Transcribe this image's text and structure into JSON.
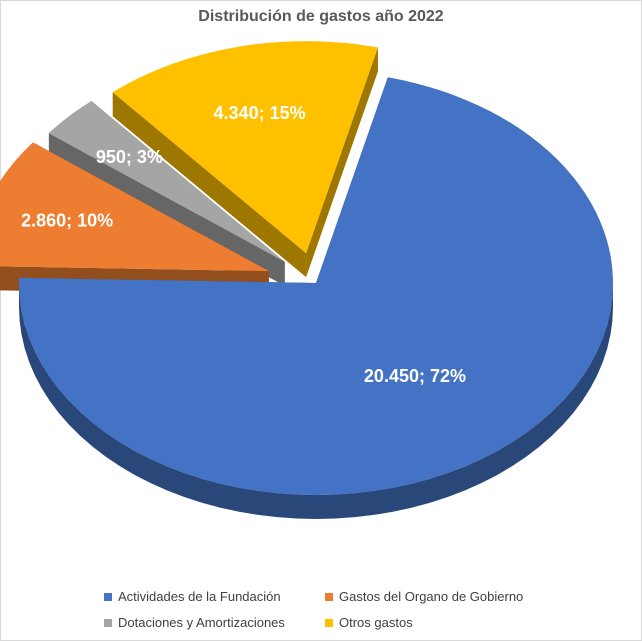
{
  "chart_data": {
    "type": "pie",
    "title": "Distribución de gastos año 2022",
    "categories": [
      "Actividades de la Fundación",
      "Gastos del Organo de Gobierno",
      "Dotaciones y Amortizaciones",
      "Otros gastos"
    ],
    "values": [
      20450,
      2860,
      950,
      4340
    ],
    "percentages": [
      72,
      10,
      3,
      15
    ],
    "data_labels": [
      "20.450; 72%",
      "2.860; 10%",
      "950; 3%",
      "4.340; 15%"
    ],
    "colors": [
      "#4472c4",
      "#ed7d31",
      "#a5a5a5",
      "#ffc000"
    ],
    "style": "3d-exploded",
    "legend_position": "bottom"
  }
}
